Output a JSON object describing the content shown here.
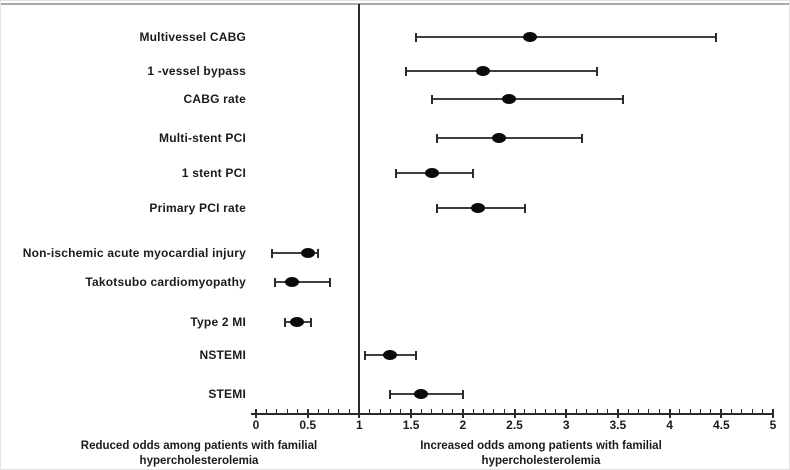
{
  "chart_data": {
    "type": "forest",
    "title": "",
    "x_axis": {
      "min": 0,
      "max": 5,
      "major_step": 0.5,
      "minor_step": 0.1,
      "reference_line_x": 1,
      "tick_labels": [
        "0",
        "0.5",
        "1",
        "1.5",
        "2",
        "2.5",
        "3",
        "3.5",
        "4",
        "4.5",
        "5"
      ]
    },
    "rows": [
      {
        "label": "Multivessel CABG",
        "or": 2.65,
        "ci_low": 1.55,
        "ci_high": 4.45
      },
      {
        "label": "1 -vessel bypass",
        "or": 2.2,
        "ci_low": 1.45,
        "ci_high": 3.3
      },
      {
        "label": "CABG rate",
        "or": 2.45,
        "ci_low": 1.7,
        "ci_high": 3.55
      },
      {
        "label": "Multi-stent PCI",
        "or": 2.35,
        "ci_low": 1.75,
        "ci_high": 3.15
      },
      {
        "label": "1 stent PCI",
        "or": 1.7,
        "ci_low": 1.35,
        "ci_high": 2.1
      },
      {
        "label": "Primary PCI rate",
        "or": 2.15,
        "ci_low": 1.75,
        "ci_high": 2.6
      },
      {
        "label": "Non-ischemic acute myocardial injury",
        "or": 0.5,
        "ci_low": 0.15,
        "ci_high": 0.6
      },
      {
        "label": "Takotsubo cardiomyopathy",
        "or": 0.35,
        "ci_low": 0.18,
        "ci_high": 0.72
      },
      {
        "label": "Type 2 MI",
        "or": 0.4,
        "ci_low": 0.28,
        "ci_high": 0.53
      },
      {
        "label": "NSTEMI",
        "or": 1.3,
        "ci_low": 1.05,
        "ci_high": 1.55
      },
      {
        "label": "STEMI",
        "or": 1.6,
        "ci_low": 1.3,
        "ci_high": 2.0
      }
    ],
    "footer": {
      "left_line1": "Reduced odds among patients with familial",
      "left_line2": "hypercholesterolemia",
      "right_line1": "Increased odds among patients with familial",
      "right_line2": "hypercholesterolemia"
    }
  },
  "colors": {
    "marker": "#0b0b0b",
    "error_bar": "#3f3f3f",
    "axis": "#2b2b2b",
    "text": "#1b1b1b",
    "background": "#ffffff"
  }
}
